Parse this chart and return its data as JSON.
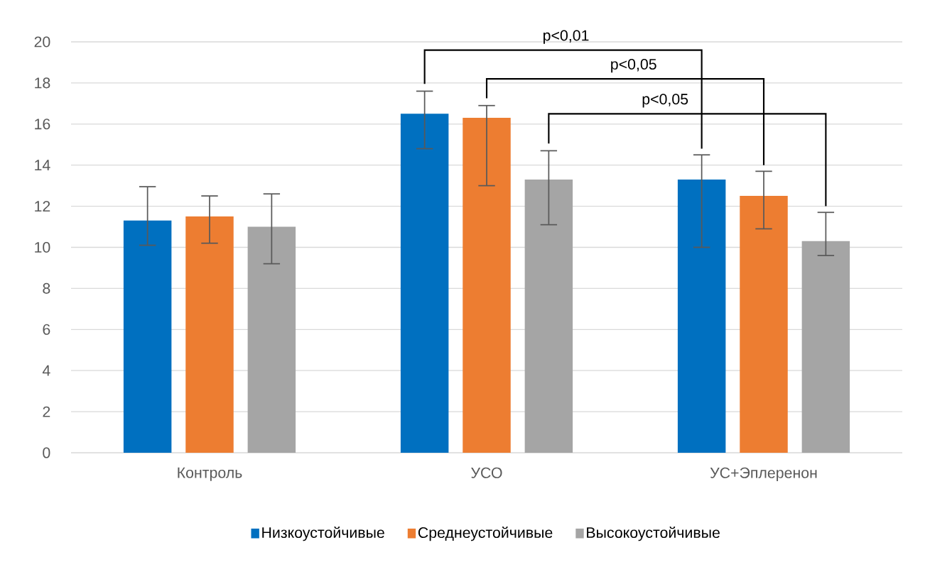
{
  "chart_data": {
    "type": "bar",
    "categories": [
      "Контроль",
      "УСО",
      "УС+Эплеренон"
    ],
    "series": [
      {
        "name": "Низкоустойчивые",
        "color": "#0070c0",
        "values": [
          11.3,
          16.5,
          13.3
        ],
        "errors": [
          [
            10.1,
            12.95
          ],
          [
            14.8,
            17.6
          ],
          [
            10.0,
            14.5
          ]
        ]
      },
      {
        "name": "Среднеустойчивые",
        "color": "#ed7d31",
        "values": [
          11.5,
          16.3,
          12.5
        ],
        "errors": [
          [
            10.2,
            12.5
          ],
          [
            13.0,
            16.9
          ],
          [
            10.9,
            13.7
          ]
        ]
      },
      {
        "name": "Высокоустойчивые",
        "color": "#a5a5a5",
        "values": [
          11.0,
          13.3,
          10.3
        ],
        "errors": [
          [
            9.2,
            12.6
          ],
          [
            11.1,
            14.7
          ],
          [
            9.6,
            11.7
          ]
        ]
      }
    ],
    "ylim": [
      0,
      20
    ],
    "yticks": [
      0,
      2,
      4,
      6,
      8,
      10,
      12,
      14,
      16,
      18,
      20
    ],
    "grid": "y",
    "legend": "bottom",
    "annotations": [
      "p<0,01",
      "p<0,05",
      "p<0,05"
    ]
  }
}
